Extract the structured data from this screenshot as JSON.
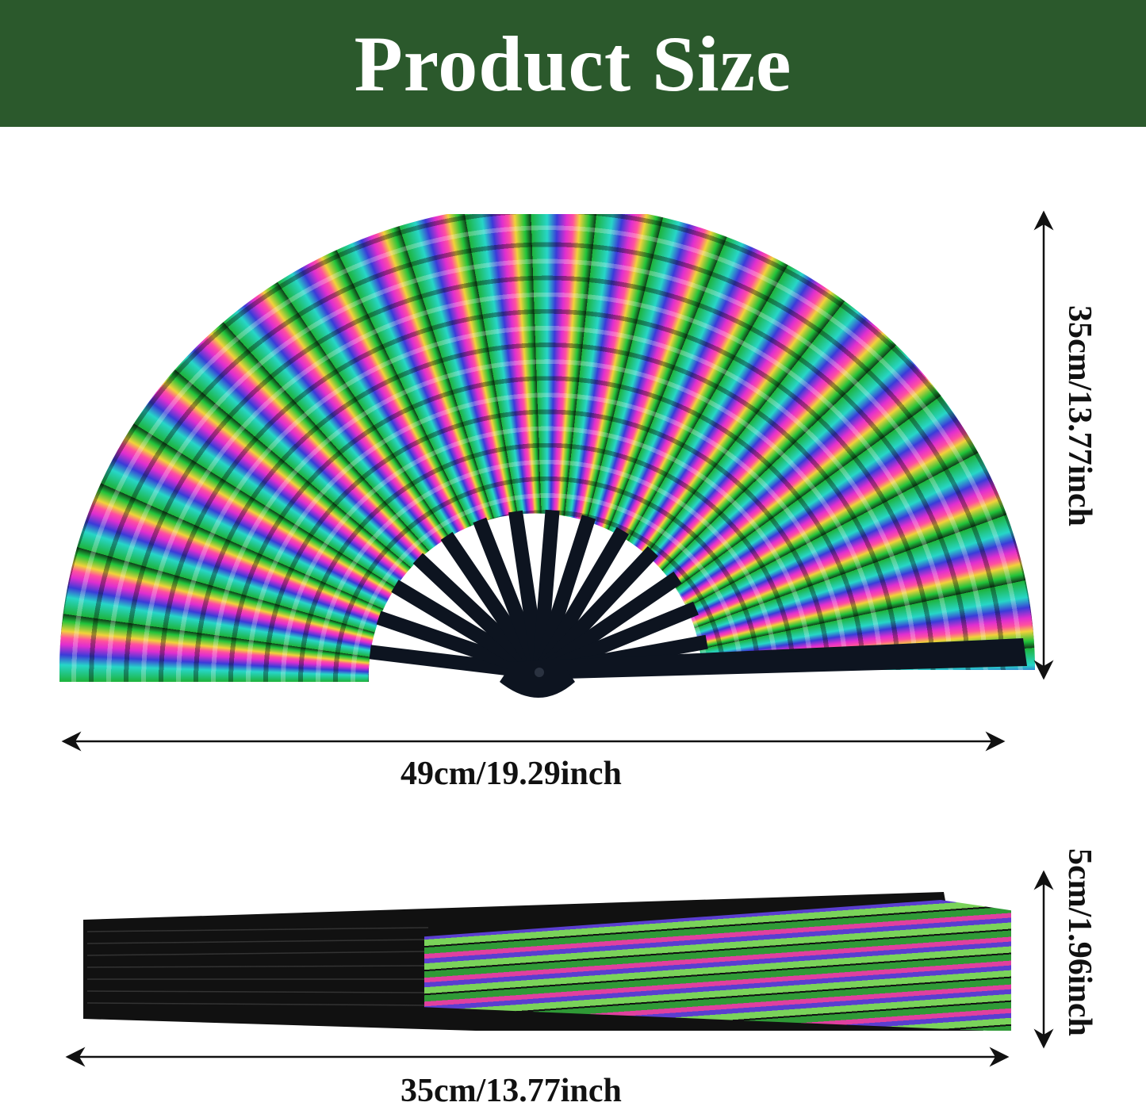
{
  "header": {
    "title": "Product Size"
  },
  "dimensions": {
    "open_height": "35cm/13.77inch",
    "open_width": "49cm/19.29inch",
    "folded_thickness": "5cm/1.96inch",
    "folded_length": "35cm/13.77inch"
  },
  "colors": {
    "header_bg": "#2b592c",
    "text": "#111111",
    "ribs": "#0d1420"
  }
}
